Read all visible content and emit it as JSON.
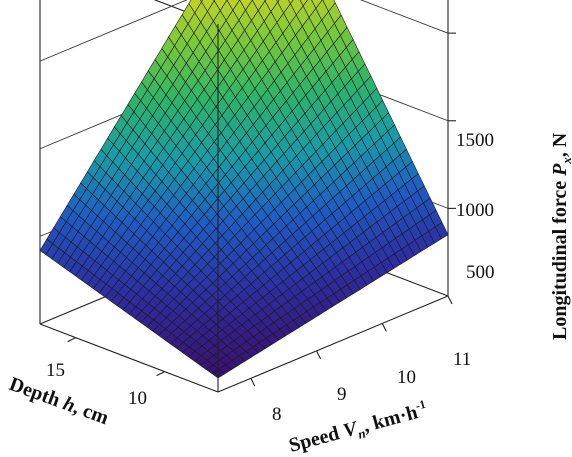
{
  "chart_data": {
    "type": "surface3d",
    "x_axis": {
      "label_prefix": "Speed ",
      "label_symbol": "V",
      "label_subscript": "n",
      "label_suffix": ", km·h",
      "label_superscript": "-1",
      "ticks": [
        "8",
        "9",
        "10",
        "11"
      ],
      "range": [
        7.5,
        11
      ]
    },
    "y_axis": {
      "label_prefix": "Depth ",
      "label_symbol": "h",
      "label_suffix": ", cm",
      "ticks": [
        "10",
        "15"
      ],
      "range": [
        7,
        17
      ]
    },
    "z_axis": {
      "label_prefix": "Longitudinal force ",
      "label_symbol": "P",
      "label_subscript": "x",
      "label_suffix": ", N",
      "ticks": [
        "500",
        "1000",
        "1500"
      ],
      "range": [
        0,
        2100
      ]
    },
    "surface": {
      "speed_range": [
        7.5,
        11
      ],
      "depth_range": [
        7,
        17
      ],
      "corner_values": {
        "low_speed_shallow": 80,
        "low_speed_deep": 420,
        "high_speed_shallow": 350,
        "high_speed_deep": 2050
      }
    },
    "colormap": [
      "#3b0f70",
      "#2c2fa3",
      "#1f5bc4",
      "#1a9ba8",
      "#2db36a",
      "#7cc93a",
      "#d8d61f",
      "#f29a1b",
      "#e8401d"
    ],
    "grid": true
  }
}
